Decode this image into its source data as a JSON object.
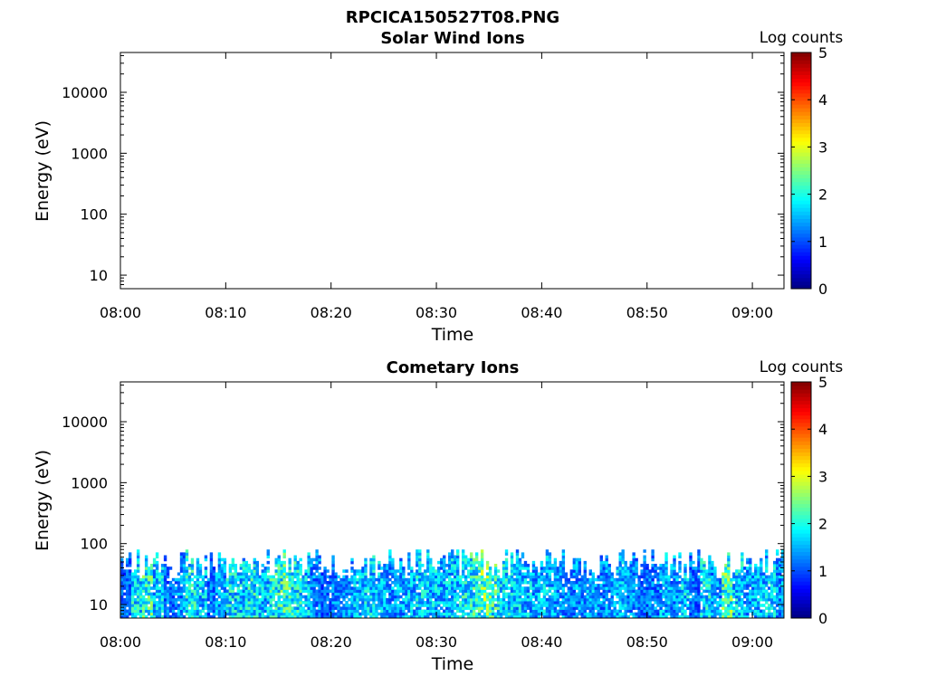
{
  "figure": {
    "title": "RPCICA150527T08.PNG"
  },
  "chart_data": [
    {
      "type": "heatmap",
      "title": "Solar Wind Ions",
      "xlabel": "Time",
      "ylabel": "Energy (eV)",
      "x_ticks": [
        "08:00",
        "08:10",
        "08:20",
        "08:30",
        "08:40",
        "08:50",
        "09:00"
      ],
      "x_range": [
        "08:00",
        "09:03"
      ],
      "y_scale": "log",
      "y_ticks": [
        10,
        100,
        1000,
        10000
      ],
      "y_ticklabels": [
        "10",
        "100",
        "1000",
        "10000"
      ],
      "ylim": [
        6,
        45000
      ],
      "colorbar": {
        "label": "Log counts",
        "ticks": [
          0,
          1,
          2,
          3,
          4,
          5
        ],
        "range": [
          0,
          5
        ],
        "colormap": "jet"
      },
      "data": []
    },
    {
      "type": "heatmap",
      "title": "Cometary Ions",
      "xlabel": "Time",
      "ylabel": "Energy (eV)",
      "x_ticks": [
        "08:00",
        "08:10",
        "08:20",
        "08:30",
        "08:40",
        "08:50",
        "09:00"
      ],
      "x_range": [
        "08:00",
        "09:03"
      ],
      "y_scale": "log",
      "y_ticks": [
        10,
        100,
        1000,
        10000
      ],
      "y_ticklabels": [
        "10",
        "100",
        "1000",
        "10000"
      ],
      "ylim": [
        6,
        45000
      ],
      "colorbar": {
        "label": "Log counts",
        "ticks": [
          0,
          1,
          2,
          3,
          4,
          5
        ],
        "range": [
          0,
          5
        ],
        "colormap": "jet"
      },
      "energy_range_ev": [
        6,
        80
      ],
      "intensity_profile": {
        "description_minutes": [
          0,
          1,
          2,
          3,
          4,
          5,
          6,
          7,
          8,
          9,
          10,
          11,
          12,
          13,
          14,
          15,
          16,
          17,
          18,
          19,
          20,
          21,
          22,
          23,
          24,
          25,
          26,
          27,
          28,
          29,
          30,
          31,
          32,
          33,
          34,
          35,
          36,
          37,
          38,
          39,
          40,
          41,
          42,
          43,
          44,
          45,
          46,
          47,
          48,
          49,
          50,
          51,
          52,
          53,
          54,
          55,
          56,
          57,
          58,
          59,
          60,
          61,
          62,
          63
        ],
        "peak_log_counts": [
          1.5,
          2.4,
          2.8,
          2.2,
          1.6,
          1.8,
          2.5,
          2.2,
          1.6,
          2.0,
          2.4,
          2.3,
          2.5,
          2.2,
          2.6,
          2.8,
          2.5,
          2.2,
          1.8,
          1.5,
          1.7,
          1.8,
          2.1,
          2.3,
          2.2,
          1.9,
          2.0,
          2.1,
          2.3,
          2.2,
          2.1,
          2.2,
          2.5,
          2.7,
          3.1,
          2.8,
          2.4,
          2.2,
          2.1,
          2.0,
          2.1,
          1.9,
          1.8,
          1.9,
          2.0,
          1.8,
          1.9,
          2.1,
          1.8,
          1.6,
          1.7,
          2.0,
          1.9,
          2.2,
          1.6,
          2.4,
          1.9,
          3.0,
          2.3,
          2.0,
          2.1,
          2.2,
          1.9,
          2.3
        ]
      }
    }
  ]
}
